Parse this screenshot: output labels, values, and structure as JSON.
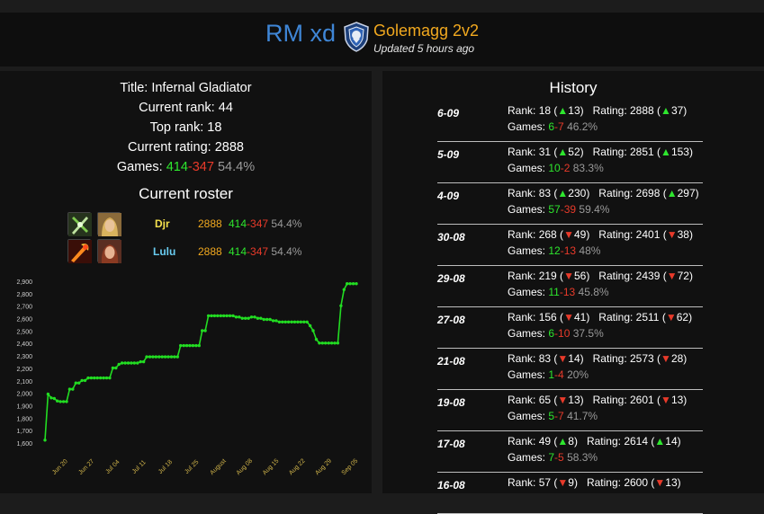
{
  "header": {
    "team_name": "RM xd",
    "faction_icon": "alliance-lion-crest-icon",
    "realm_bracket": "Golemagg 2v2",
    "updated": "Updated 5 hours ago"
  },
  "stats": {
    "title_label": "Title:",
    "title_value": "Infernal Gladiator",
    "current_rank_label": "Current rank:",
    "current_rank": "44",
    "top_rank_label": "Top rank:",
    "top_rank": "18",
    "current_rating_label": "Current rating:",
    "current_rating": "2888",
    "games_label": "Games:",
    "wins": "414",
    "losses": "347",
    "win_pct": "54.4%"
  },
  "roster": {
    "title": "Current roster",
    "members": [
      {
        "name": "Djr",
        "name_color": "#f4e04d",
        "rating": "2888",
        "wins": "414",
        "losses": "347",
        "pct": "54.4%",
        "spec_icon": "dual-blades-spec-icon",
        "avatar_icon": "human-rogue-portrait-icon"
      },
      {
        "name": "Lulu",
        "name_color": "#69ccf0",
        "rating": "2888",
        "wins": "414",
        "losses": "347",
        "pct": "54.4%",
        "spec_icon": "fire-mage-spec-icon",
        "avatar_icon": "human-mage-portrait-icon"
      }
    ]
  },
  "chart_data": {
    "type": "line",
    "title": "",
    "xlabel": "",
    "ylabel": "",
    "ylim": [
      1600,
      2900
    ],
    "y_ticks": [
      "1,600",
      "1,700",
      "1,800",
      "1,900",
      "2,000",
      "2,100",
      "2,200",
      "2,300",
      "2,400",
      "2,500",
      "2,600",
      "2,700",
      "2,800",
      "2,900"
    ],
    "x_ticks": [
      "Jun 20",
      "Jun 27",
      "Jul 04",
      "Jul 11",
      "Jul 18",
      "Jul 25",
      "August",
      "Aug 08",
      "Aug 15",
      "Aug 22",
      "Aug 29",
      "Sep 05"
    ],
    "color": "#22dd22",
    "series": [
      {
        "values": [
          1630,
          2000,
          1970,
          1965,
          1945,
          1940,
          1940,
          1940,
          2040,
          2040,
          2090,
          2090,
          2110,
          2110,
          2130,
          2130,
          2130,
          2130,
          2130,
          2130,
          2130,
          2130,
          2210,
          2210,
          2240,
          2250,
          2250,
          2250,
          2250,
          2250,
          2250,
          2260,
          2260,
          2300,
          2300,
          2300,
          2300,
          2300,
          2300,
          2300,
          2300,
          2300,
          2300,
          2300,
          2390,
          2390,
          2390,
          2390,
          2390,
          2390,
          2390,
          2510,
          2510,
          2630,
          2630,
          2630,
          2630,
          2630,
          2630,
          2630,
          2630,
          2630,
          2620,
          2620,
          2610,
          2610,
          2610,
          2620,
          2620,
          2610,
          2610,
          2600,
          2600,
          2600,
          2590,
          2590,
          2580,
          2580,
          2580,
          2580,
          2580,
          2580,
          2580,
          2580,
          2580,
          2580,
          2550,
          2510,
          2440,
          2410,
          2410,
          2410,
          2410,
          2410,
          2410,
          2410,
          2710,
          2840,
          2888,
          2888,
          2888,
          2888
        ]
      }
    ]
  },
  "history": {
    "title": "History",
    "rows": [
      {
        "date": "6-09",
        "rank": "18",
        "rank_dir": "up",
        "rank_change": "13",
        "rating": "2888",
        "rating_dir": "up",
        "rating_change": "37",
        "wins": "6",
        "losses": "7",
        "pct": "46.2%"
      },
      {
        "date": "5-09",
        "rank": "31",
        "rank_dir": "up",
        "rank_change": "52",
        "rating": "2851",
        "rating_dir": "up",
        "rating_change": "153",
        "wins": "10",
        "losses": "2",
        "pct": "83.3%"
      },
      {
        "date": "4-09",
        "rank": "83",
        "rank_dir": "up",
        "rank_change": "230",
        "rating": "2698",
        "rating_dir": "up",
        "rating_change": "297",
        "wins": "57",
        "losses": "39",
        "pct": "59.4%"
      },
      {
        "date": "30-08",
        "rank": "268",
        "rank_dir": "down",
        "rank_change": "49",
        "rating": "2401",
        "rating_dir": "down",
        "rating_change": "38",
        "wins": "12",
        "losses": "13",
        "pct": "48%"
      },
      {
        "date": "29-08",
        "rank": "219",
        "rank_dir": "down",
        "rank_change": "56",
        "rating": "2439",
        "rating_dir": "down",
        "rating_change": "72",
        "wins": "11",
        "losses": "13",
        "pct": "45.8%"
      },
      {
        "date": "27-08",
        "rank": "156",
        "rank_dir": "down",
        "rank_change": "41",
        "rating": "2511",
        "rating_dir": "down",
        "rating_change": "62",
        "wins": "6",
        "losses": "10",
        "pct": "37.5%"
      },
      {
        "date": "21-08",
        "rank": "83",
        "rank_dir": "down",
        "rank_change": "14",
        "rating": "2573",
        "rating_dir": "down",
        "rating_change": "28",
        "wins": "1",
        "losses": "4",
        "pct": "20%"
      },
      {
        "date": "19-08",
        "rank": "65",
        "rank_dir": "down",
        "rank_change": "13",
        "rating": "2601",
        "rating_dir": "down",
        "rating_change": "13",
        "wins": "5",
        "losses": "7",
        "pct": "41.7%"
      },
      {
        "date": "17-08",
        "rank": "49",
        "rank_dir": "up",
        "rank_change": "8",
        "rating": "2614",
        "rating_dir": "up",
        "rating_change": "14",
        "wins": "7",
        "losses": "5",
        "pct": "58.3%"
      },
      {
        "date": "16-08",
        "rank": "57",
        "rank_dir": "down",
        "rank_change": "9",
        "rating": "2600",
        "rating_dir": "down",
        "rating_change": "13",
        "wins": "",
        "losses": "",
        "pct": ""
      }
    ]
  }
}
